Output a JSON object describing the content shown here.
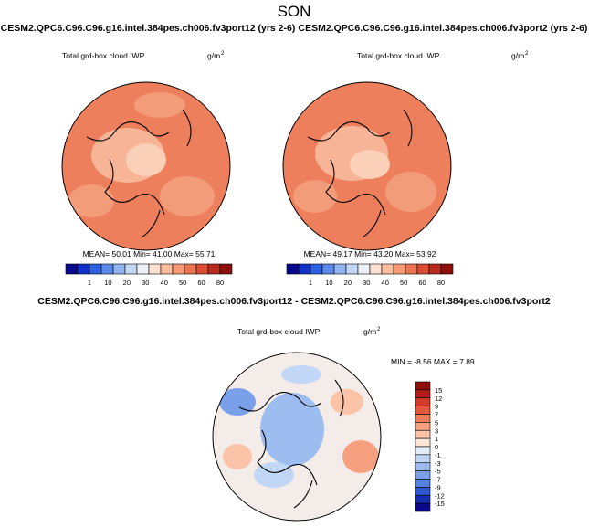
{
  "title": "SON",
  "panels": [
    {
      "title": "CESM2.QPC6.C96.C96.g16.intel.384pes.ch006.fv3port12 (yrs 2-6)",
      "variable": "Total grd-box cloud IWP",
      "units": "g/m",
      "units_exp": "2",
      "stats": "MEAN=  50.01   Min=  41.00   Max=  55.71"
    },
    {
      "title": "CESM2.QPC6.C96.C96.g16.intel.384pes.ch006.fv3port2 (yrs 2-6)",
      "variable": "Total grd-box cloud IWP",
      "units": "g/m",
      "units_exp": "2",
      "stats": "MEAN=  49.17   Min=  43.20   Max=  53.92"
    },
    {
      "title": "CESM2.QPC6.C96.C96.g16.intel.384pes.ch006.fv3port12 - CESM2.QPC6.C96.C96.g16.intel.384pes.ch006.fv3port2",
      "variable": "Total grd-box cloud IWP",
      "units": "g/m",
      "units_exp": "2",
      "stats": "MIN = -8.56 MAX =  7.89"
    }
  ],
  "colorbar": {
    "labels": [
      "1",
      "10",
      "20",
      "30",
      "40",
      "50",
      "60",
      "80"
    ],
    "colors": [
      "#08088c",
      "#1030c8",
      "#2c5fe0",
      "#5a8ae8",
      "#8fb2f0",
      "#c2d6f6",
      "#eef0f7",
      "#fde0cf",
      "#fbbfa0",
      "#f69a76",
      "#ec7350",
      "#d84c34",
      "#b82a1e",
      "#8c0f0c"
    ]
  },
  "diff_colorbar": {
    "labels": [
      "15",
      "12",
      "9",
      "7",
      "5",
      "3",
      "1",
      "0",
      "-1",
      "-3",
      "-5",
      "-7",
      "-9",
      "-12",
      "-15"
    ],
    "colors": [
      "#8c0f0c",
      "#b01d18",
      "#d03a28",
      "#e4593c",
      "#f07d5a",
      "#f7a07f",
      "#fbc4a8",
      "#fde6d8",
      "#e4eefa",
      "#c2d6f6",
      "#9dbcf0",
      "#7aa0ea",
      "#5580e0",
      "#2f58d0",
      "#1430b0",
      "#08088c"
    ]
  }
}
